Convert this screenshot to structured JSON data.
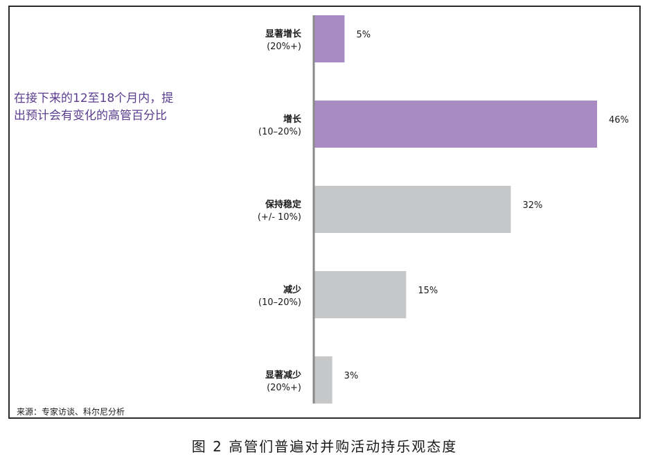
{
  "chart_data": {
    "type": "bar",
    "orientation": "horizontal",
    "title": "在接下来的12至18个月内，提出预计会有变化的高管百分比",
    "categories": [
      {
        "name": "显著增长",
        "range": "(20%+)"
      },
      {
        "name": "增长",
        "range": "(10–20%)"
      },
      {
        "name": "保持稳定",
        "range": "(+/- 10%)"
      },
      {
        "name": "减少",
        "range": "(10–20%)"
      },
      {
        "name": "显著减少",
        "range": "(20%+)"
      }
    ],
    "values": [
      5,
      46,
      32,
      15,
      3
    ],
    "value_labels": [
      "5%",
      "46%",
      "32%",
      "15%",
      "3%"
    ],
    "unit": "%",
    "xlim": [
      0,
      50
    ],
    "grid": false,
    "bar_colors": [
      "#a88bc2",
      "#a88bc2",
      "#c6c7c9",
      "#c6c7c9",
      "#c6c7c9"
    ],
    "axis_color": "#8a8a8a"
  },
  "headline": {
    "line1": "在接下来的12至18个月内，提",
    "line2": "出预计会有变化的高管百分比"
  },
  "source": "来源：专家访谈、科尔尼分析",
  "caption": "图 2   高管们普遍对并购活动持乐观态度"
}
